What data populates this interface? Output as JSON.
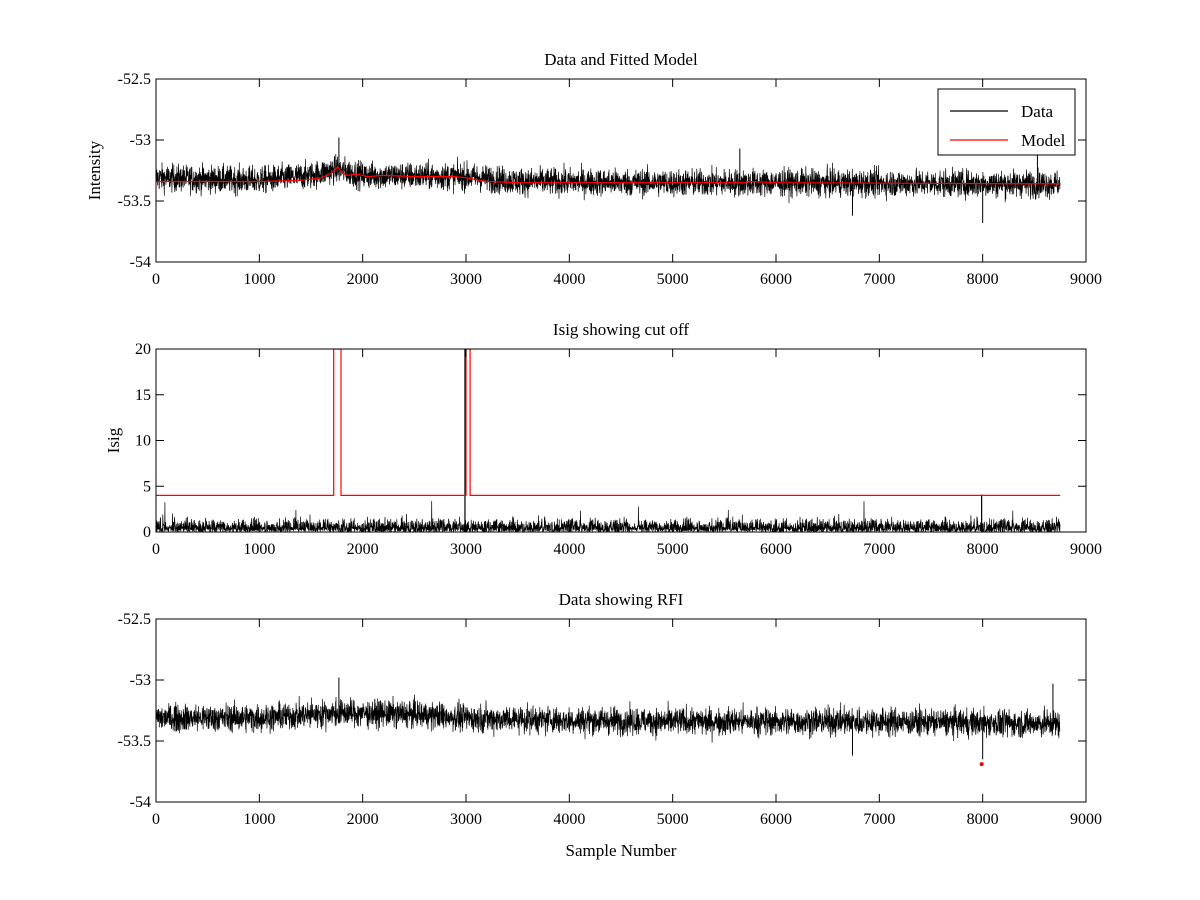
{
  "colors": {
    "data": "#000000",
    "model": "#ff0000",
    "background": "#ffffff"
  },
  "chart_data": [
    {
      "type": "line",
      "title": "Data and Fitted Model",
      "xlabel": "",
      "ylabel": "Intensity",
      "xlim": [
        0,
        9000
      ],
      "ylim": [
        -54,
        -52.5
      ],
      "xticks": [
        0,
        1000,
        2000,
        3000,
        4000,
        5000,
        6000,
        7000,
        8000,
        9000
      ],
      "xtick_labels": [
        "0",
        "1000",
        "2000",
        "3000",
        "4000",
        "5000",
        "6000",
        "7000",
        "8000",
        "9000"
      ],
      "yticks": [
        -54,
        -53.5,
        -53,
        -52.5
      ],
      "ytick_labels": [
        "-54",
        "-53.5",
        "-53",
        "-52.5"
      ],
      "legend": {
        "position": "top-right",
        "entries": [
          "Data",
          "Model"
        ]
      },
      "series": [
        {
          "name": "Data",
          "color": "#000000",
          "description_samples": 8750,
          "baseline_points": [
            [
              0,
              -53.31
            ],
            [
              1000,
              -53.33
            ],
            [
              1500,
              -53.29
            ],
            [
              1750,
              -53.24
            ],
            [
              2000,
              -53.29
            ],
            [
              3000,
              -53.3
            ],
            [
              3500,
              -53.34
            ],
            [
              5000,
              -53.35
            ],
            [
              6000,
              -53.35
            ],
            [
              8750,
              -53.36
            ]
          ],
          "noise_amplitude": 0.1,
          "max_points": [
            [
              1770,
              -52.98
            ],
            [
              5650,
              -53.07
            ],
            [
              8530,
              -53.08
            ]
          ],
          "min_points": [
            [
              8000,
              -53.68
            ],
            [
              6740,
              -53.62
            ]
          ]
        },
        {
          "name": "Model",
          "color": "#ff0000",
          "points": [
            [
              0,
              -53.34
            ],
            [
              1000,
              -53.34
            ],
            [
              1400,
              -53.33
            ],
            [
              1600,
              -53.31
            ],
            [
              1700,
              -53.27
            ],
            [
              1760,
              -53.22
            ],
            [
              1800,
              -53.27
            ],
            [
              1850,
              -53.29
            ],
            [
              1950,
              -53.28
            ],
            [
              2050,
              -53.3
            ],
            [
              2200,
              -53.29
            ],
            [
              2500,
              -53.3
            ],
            [
              2900,
              -53.3
            ],
            [
              3000,
              -53.31
            ],
            [
              3200,
              -53.34
            ],
            [
              3500,
              -53.35
            ],
            [
              5000,
              -53.35
            ],
            [
              5700,
              -53.35
            ],
            [
              5750,
              -53.34
            ],
            [
              6000,
              -53.35
            ],
            [
              8750,
              -53.36
            ]
          ]
        }
      ]
    },
    {
      "type": "line",
      "title": "Isig showing cut off",
      "xlabel": "",
      "ylabel": "Isig",
      "xlim": [
        0,
        9000
      ],
      "ylim": [
        0,
        20
      ],
      "xticks": [
        0,
        1000,
        2000,
        3000,
        4000,
        5000,
        6000,
        7000,
        8000,
        9000
      ],
      "xtick_labels": [
        "0",
        "1000",
        "2000",
        "3000",
        "4000",
        "5000",
        "6000",
        "7000",
        "8000",
        "9000"
      ],
      "yticks": [
        0,
        5,
        10,
        15,
        20
      ],
      "ytick_labels": [
        "0",
        "5",
        "10",
        "15",
        "20"
      ],
      "series": [
        {
          "color": "#000000",
          "description_samples": 8750,
          "typical_max": 1.2,
          "peak_max": 3.5,
          "spikes": [
            [
              2990,
              20
            ],
            [
              7990,
              4.1
            ]
          ]
        },
        {
          "color": "#ff0000",
          "points": [
            [
              0,
              4
            ],
            [
              1720,
              4
            ],
            [
              1720,
              20
            ],
            [
              1790,
              20
            ],
            [
              1790,
              4
            ],
            [
              3000,
              4
            ],
            [
              3000,
              20
            ],
            [
              3040,
              20
            ],
            [
              3040,
              4
            ],
            [
              8750,
              4
            ]
          ]
        }
      ]
    },
    {
      "type": "line",
      "title": "Data showing RFI",
      "xlabel": "Sample Number",
      "ylabel": "",
      "xlim": [
        0,
        9000
      ],
      "ylim": [
        -54,
        -52.5
      ],
      "xticks": [
        0,
        1000,
        2000,
        3000,
        4000,
        5000,
        6000,
        7000,
        8000,
        9000
      ],
      "xtick_labels": [
        "0",
        "1000",
        "2000",
        "3000",
        "4000",
        "5000",
        "6000",
        "7000",
        "8000",
        "9000"
      ],
      "yticks": [
        -54,
        -53.5,
        -53,
        -52.5
      ],
      "ytick_labels": [
        "-54",
        "-53.5",
        "-53",
        "-52.5"
      ],
      "series": [
        {
          "color": "#000000",
          "description_samples": 8750,
          "baseline_points": [
            [
              0,
              -53.31
            ],
            [
              1000,
              -53.31
            ],
            [
              1750,
              -53.27
            ],
            [
              2500,
              -53.28
            ],
            [
              3000,
              -53.31
            ],
            [
              4000,
              -53.33
            ],
            [
              5000,
              -53.34
            ],
            [
              6000,
              -53.34
            ],
            [
              7000,
              -53.34
            ],
            [
              8750,
              -53.36
            ]
          ],
          "noise_amplitude": 0.1,
          "max_points": [
            [
              1770,
              -52.98
            ],
            [
              8680,
              -53.03
            ]
          ],
          "min_points": [
            [
              8000,
              -53.65
            ],
            [
              6740,
              -53.62
            ]
          ]
        },
        {
          "color": "#ff0000",
          "marker": "dot",
          "points": [
            [
              7990,
              -53.69
            ]
          ]
        }
      ]
    }
  ]
}
